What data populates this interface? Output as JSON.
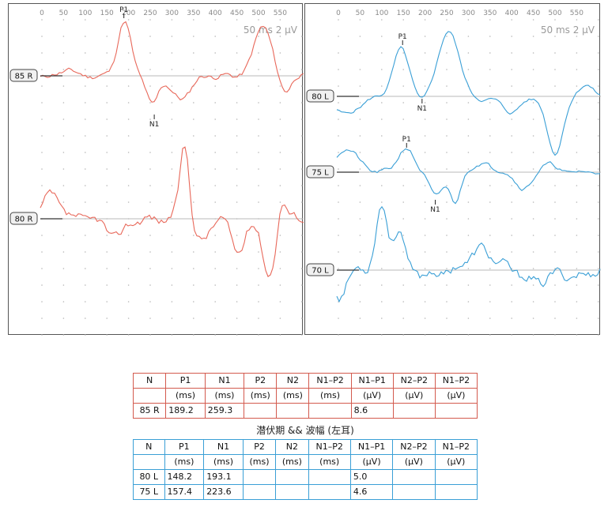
{
  "x_axis": {
    "ticks": [
      "0",
      "50",
      "100",
      "150",
      "200",
      "250",
      "300",
      "350",
      "400",
      "450",
      "500",
      "550"
    ]
  },
  "scale": {
    "time": "50 ms",
    "amplitude": "2 µV"
  },
  "colors": {
    "right_trace": "#e8685a",
    "left_trace": "#3a9fd6",
    "baseline": "#b8b8b8"
  },
  "right_panel": {
    "traces": [
      {
        "label": "85 R",
        "peaks": [
          {
            "name": "P1",
            "latency_ms": 189.2
          },
          {
            "name": "N1",
            "latency_ms": 259.3
          }
        ]
      },
      {
        "label": "80 R",
        "peaks": []
      }
    ]
  },
  "left_panel": {
    "traces": [
      {
        "label": "80 L",
        "peaks": [
          {
            "name": "P1",
            "latency_ms": 148.2
          },
          {
            "name": "N1",
            "latency_ms": 193.1
          }
        ]
      },
      {
        "label": "75 L",
        "peaks": [
          {
            "name": "P1",
            "latency_ms": 157.4
          },
          {
            "name": "N1",
            "latency_ms": 223.6
          }
        ]
      },
      {
        "label": "70 L",
        "peaks": []
      }
    ]
  },
  "table_headers": [
    {
      "top": "N",
      "bottom": ""
    },
    {
      "top": "P1",
      "bottom": "(ms)"
    },
    {
      "top": "N1",
      "bottom": "(ms)"
    },
    {
      "top": "P2",
      "bottom": "(ms)"
    },
    {
      "top": "N2",
      "bottom": "(ms)"
    },
    {
      "top": "N1–P2",
      "bottom": "(ms)"
    },
    {
      "top": "N1–P1",
      "bottom": "(µV)"
    },
    {
      "top": "N2–P2",
      "bottom": "(µV)"
    },
    {
      "top": "N1–P2",
      "bottom": "(µV)"
    }
  ],
  "table_right": {
    "rows": [
      [
        "85 R",
        "189.2",
        "259.3",
        "",
        "",
        "",
        "8.6",
        "",
        ""
      ]
    ]
  },
  "table_left": {
    "caption": "潜伏期 && 波幅 (左耳)",
    "rows": [
      [
        "80 L",
        "148.2",
        "193.1",
        "",
        "",
        "",
        "5.0",
        "",
        ""
      ],
      [
        "75 L",
        "157.4",
        "223.6",
        "",
        "",
        "",
        "4.6",
        "",
        ""
      ]
    ]
  }
}
